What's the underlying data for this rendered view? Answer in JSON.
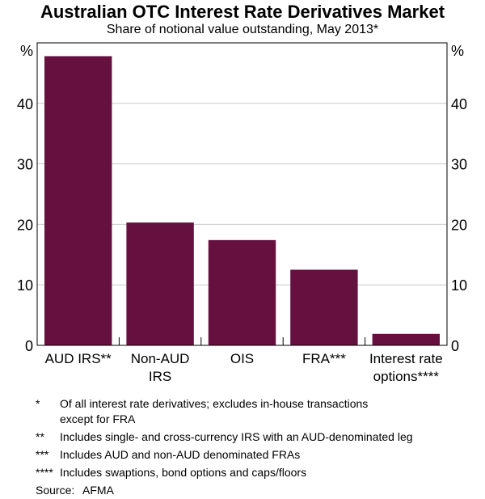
{
  "chart_data": {
    "type": "bar",
    "title": "Australian OTC Interest Rate Derivatives Market",
    "subtitle": "Share of notional value outstanding, May 2013*",
    "categories": [
      "AUD IRS**",
      "Non-AUD IRS",
      "OIS",
      "FRA***",
      "Interest rate options****"
    ],
    "category_lines": [
      [
        "AUD IRS**"
      ],
      [
        "Non-AUD",
        "IRS"
      ],
      [
        "OIS"
      ],
      [
        "FRA***"
      ],
      [
        "Interest rate",
        "options****"
      ]
    ],
    "values": [
      47.8,
      20.3,
      17.4,
      12.5,
      1.9
    ],
    "ylabel_left": "%",
    "ylabel_right": "%",
    "ylim": [
      0,
      50
    ],
    "yticks": [
      0,
      10,
      20,
      30,
      40
    ],
    "grid": true,
    "bar_color": "#661040"
  },
  "footnotes": [
    {
      "marker": "*",
      "text": "Of all interest rate derivatives; excludes in-house transactions",
      "text2": "except for FRA"
    },
    {
      "marker": "**",
      "text": "Includes single- and cross-currency IRS with an AUD-denominated leg"
    },
    {
      "marker": "***",
      "text": "Includes AUD and non-AUD denominated FRAs"
    },
    {
      "marker": "****",
      "text": "Includes swaptions, bond options and caps/floors"
    }
  ],
  "source": {
    "label": "Source:",
    "value": "AFMA"
  }
}
